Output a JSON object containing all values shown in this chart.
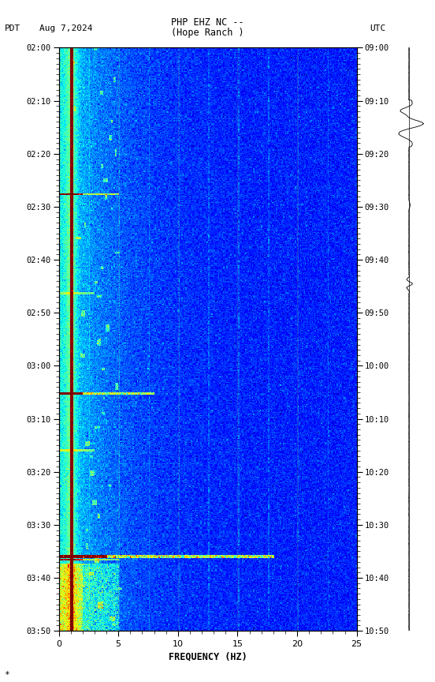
{
  "title_line1": "PHP EHZ NC --",
  "title_line2": "(Hope Ranch )",
  "label_left": "PDT",
  "label_date": "Aug 7,2024",
  "label_right": "UTC",
  "xlabel": "FREQUENCY (HZ)",
  "freq_min": 0,
  "freq_max": 25,
  "time_labels_pdt": [
    "02:00",
    "02:10",
    "02:20",
    "02:30",
    "02:40",
    "02:50",
    "03:00",
    "03:10",
    "03:20",
    "03:30",
    "03:40",
    "03:50"
  ],
  "time_labels_utc": [
    "09:00",
    "09:10",
    "09:20",
    "09:30",
    "09:40",
    "09:50",
    "10:00",
    "10:10",
    "10:20",
    "10:30",
    "10:40",
    "10:50"
  ],
  "fig_bg": "#ffffff",
  "colormap": "jet",
  "vmin": -3,
  "vmax": 3.5,
  "freq_ticks": [
    0,
    5,
    10,
    15,
    20,
    25
  ],
  "note_text": "*",
  "grid_freqs": [
    5,
    10,
    15,
    20,
    25
  ],
  "n_time": 600,
  "n_freq": 300
}
